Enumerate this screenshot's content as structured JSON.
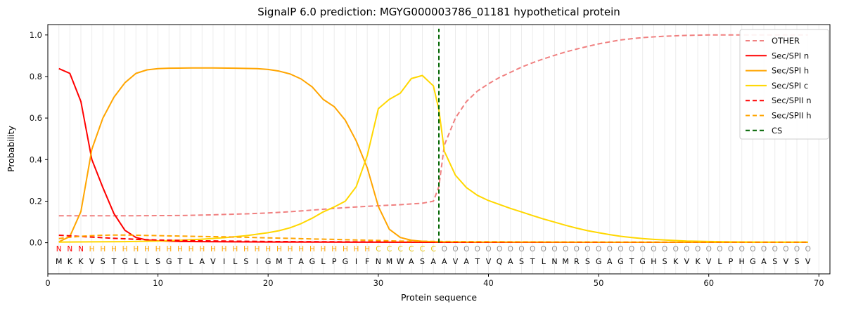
{
  "chart_data": {
    "type": "line",
    "title": "SignalP 6.0 prediction: MGYG000003786_01181 hypothetical protein",
    "xlabel": "Protein sequence",
    "ylabel": "Probability",
    "xlim": [
      0,
      71
    ],
    "ylim": [
      -0.15,
      1.05
    ],
    "xticks": [
      0,
      10,
      20,
      30,
      40,
      50,
      60,
      70
    ],
    "yticks": [
      0,
      0.2,
      0.4,
      0.6,
      0.8,
      1.0
    ],
    "grid": "light vertical gridline at every residue position",
    "legend_position": "upper right",
    "cs_position": 35.5,
    "cs_color": "#006400",
    "sequence": "MKKVSTGLLSGTLAVILSIGMTAGLPGIFNMWASAAVATVQASTLNMRSGAGTGHSKVKVLPHGASVSV",
    "region_labels": [
      {
        "label": "N",
        "start": 1,
        "end": 3,
        "color": "#ff0000"
      },
      {
        "label": "H",
        "start": 4,
        "end": 29,
        "color": "#ffa500"
      },
      {
        "label": "C",
        "start": 30,
        "end": 35,
        "color": "#e6c200"
      },
      {
        "label": "O",
        "start": 36,
        "end": 69,
        "color": "#8f8f8f"
      }
    ],
    "series": [
      {
        "name": "OTHER",
        "color": "#f08080",
        "dash": "7,4",
        "points": [
          [
            1,
            0.13
          ],
          [
            4,
            0.13
          ],
          [
            8,
            0.13
          ],
          [
            12,
            0.131
          ],
          [
            14,
            0.133
          ],
          [
            16,
            0.136
          ],
          [
            18,
            0.139
          ],
          [
            20,
            0.143
          ],
          [
            22,
            0.149
          ],
          [
            24,
            0.157
          ],
          [
            26,
            0.165
          ],
          [
            28,
            0.172
          ],
          [
            30,
            0.178
          ],
          [
            32,
            0.183
          ],
          [
            34,
            0.19
          ],
          [
            35,
            0.2
          ],
          [
            35.5,
            0.27
          ],
          [
            36,
            0.47
          ],
          [
            37,
            0.6
          ],
          [
            38,
            0.68
          ],
          [
            39,
            0.73
          ],
          [
            40,
            0.765
          ],
          [
            41,
            0.795
          ],
          [
            42,
            0.82
          ],
          [
            43,
            0.845
          ],
          [
            44,
            0.866
          ],
          [
            45,
            0.885
          ],
          [
            46,
            0.902
          ],
          [
            47,
            0.918
          ],
          [
            48,
            0.932
          ],
          [
            49,
            0.945
          ],
          [
            50,
            0.957
          ],
          [
            51,
            0.967
          ],
          [
            52,
            0.976
          ],
          [
            53,
            0.982
          ],
          [
            54,
            0.987
          ],
          [
            55,
            0.991
          ],
          [
            56,
            0.994
          ],
          [
            57,
            0.996
          ],
          [
            58,
            0.998
          ],
          [
            59,
            0.999
          ],
          [
            60,
            1.0
          ],
          [
            63,
            1.0
          ],
          [
            66,
            1.0
          ],
          [
            69,
            1.0
          ]
        ]
      },
      {
        "name": "Sec/SPI n",
        "color": "#ff0000",
        "dash": null,
        "points": [
          [
            1,
            0.838
          ],
          [
            2,
            0.815
          ],
          [
            3,
            0.68
          ],
          [
            4,
            0.4
          ],
          [
            5,
            0.265
          ],
          [
            6,
            0.14
          ],
          [
            7,
            0.06
          ],
          [
            8,
            0.025
          ],
          [
            9,
            0.013
          ],
          [
            10,
            0.009
          ],
          [
            12,
            0.006
          ],
          [
            14,
            0.005
          ],
          [
            17,
            0.004
          ],
          [
            20,
            0.0035
          ],
          [
            25,
            0.003
          ],
          [
            30,
            0.0025
          ],
          [
            35,
            0.002
          ],
          [
            40,
            0.002
          ],
          [
            50,
            0.002
          ],
          [
            60,
            0.002
          ],
          [
            69,
            0.002
          ]
        ]
      },
      {
        "name": "Sec/SPI h",
        "color": "#ffa500",
        "dash": null,
        "points": [
          [
            1,
            0.004
          ],
          [
            2,
            0.03
          ],
          [
            3,
            0.15
          ],
          [
            4,
            0.45
          ],
          [
            5,
            0.6
          ],
          [
            6,
            0.7
          ],
          [
            7,
            0.77
          ],
          [
            8,
            0.815
          ],
          [
            9,
            0.832
          ],
          [
            10,
            0.838
          ],
          [
            11,
            0.84
          ],
          [
            13,
            0.841
          ],
          [
            15,
            0.841
          ],
          [
            17,
            0.84
          ],
          [
            19,
            0.838
          ],
          [
            20,
            0.834
          ],
          [
            21,
            0.826
          ],
          [
            22,
            0.812
          ],
          [
            23,
            0.788
          ],
          [
            24,
            0.75
          ],
          [
            25,
            0.69
          ],
          [
            26,
            0.655
          ],
          [
            27,
            0.59
          ],
          [
            28,
            0.49
          ],
          [
            29,
            0.36
          ],
          [
            30,
            0.175
          ],
          [
            31,
            0.065
          ],
          [
            32,
            0.025
          ],
          [
            33,
            0.012
          ],
          [
            34,
            0.007
          ],
          [
            35,
            0.005
          ],
          [
            36,
            0.004
          ],
          [
            38,
            0.003
          ],
          [
            42,
            0.003
          ],
          [
            50,
            0.002
          ],
          [
            60,
            0.002
          ],
          [
            69,
            0.002
          ]
        ]
      },
      {
        "name": "Sec/SPI c",
        "color": "#ffd700",
        "dash": null,
        "points": [
          [
            1,
            0.003
          ],
          [
            4,
            0.004
          ],
          [
            7,
            0.005
          ],
          [
            10,
            0.008
          ],
          [
            12,
            0.012
          ],
          [
            14,
            0.017
          ],
          [
            16,
            0.024
          ],
          [
            18,
            0.034
          ],
          [
            20,
            0.048
          ],
          [
            21,
            0.058
          ],
          [
            22,
            0.072
          ],
          [
            23,
            0.092
          ],
          [
            24,
            0.118
          ],
          [
            25,
            0.148
          ],
          [
            26,
            0.172
          ],
          [
            27,
            0.2
          ],
          [
            28,
            0.27
          ],
          [
            29,
            0.42
          ],
          [
            30,
            0.645
          ],
          [
            31,
            0.69
          ],
          [
            32,
            0.72
          ],
          [
            33,
            0.79
          ],
          [
            34,
            0.805
          ],
          [
            35,
            0.755
          ],
          [
            35.5,
            0.64
          ],
          [
            36,
            0.44
          ],
          [
            37,
            0.325
          ],
          [
            38,
            0.265
          ],
          [
            39,
            0.228
          ],
          [
            40,
            0.203
          ],
          [
            41,
            0.184
          ],
          [
            42,
            0.165
          ],
          [
            43,
            0.148
          ],
          [
            44,
            0.131
          ],
          [
            45,
            0.114
          ],
          [
            46,
            0.099
          ],
          [
            47,
            0.084
          ],
          [
            48,
            0.07
          ],
          [
            49,
            0.058
          ],
          [
            50,
            0.048
          ],
          [
            51,
            0.039
          ],
          [
            52,
            0.031
          ],
          [
            53,
            0.025
          ],
          [
            54,
            0.02
          ],
          [
            55,
            0.016
          ],
          [
            56,
            0.013
          ],
          [
            58,
            0.008
          ],
          [
            60,
            0.006
          ],
          [
            62,
            0.004
          ],
          [
            65,
            0.003
          ],
          [
            69,
            0.003
          ]
        ]
      },
      {
        "name": "Sec/SPII n",
        "color": "#ff0000",
        "dash": "7,4",
        "points": [
          [
            1,
            0.036
          ],
          [
            2,
            0.033
          ],
          [
            3,
            0.03
          ],
          [
            4,
            0.027
          ],
          [
            5,
            0.024
          ],
          [
            6,
            0.021
          ],
          [
            7,
            0.019
          ],
          [
            8,
            0.016
          ],
          [
            10,
            0.013
          ],
          [
            12,
            0.011
          ],
          [
            14,
            0.009
          ],
          [
            16,
            0.008
          ],
          [
            18,
            0.007
          ],
          [
            20,
            0.006
          ],
          [
            23,
            0.005
          ],
          [
            26,
            0.0045
          ],
          [
            30,
            0.004
          ],
          [
            35,
            0.003
          ],
          [
            40,
            0.003
          ],
          [
            50,
            0.002
          ],
          [
            60,
            0.002
          ],
          [
            69,
            0.002
          ]
        ]
      },
      {
        "name": "Sec/SPII h",
        "color": "#ffa500",
        "dash": "7,4",
        "points": [
          [
            1,
            0.02
          ],
          [
            2,
            0.026
          ],
          [
            3,
            0.031
          ],
          [
            4,
            0.034
          ],
          [
            5,
            0.036
          ],
          [
            6,
            0.037
          ],
          [
            7,
            0.037
          ],
          [
            8,
            0.036
          ],
          [
            10,
            0.034
          ],
          [
            12,
            0.032
          ],
          [
            14,
            0.03
          ],
          [
            16,
            0.028
          ],
          [
            18,
            0.026
          ],
          [
            20,
            0.023
          ],
          [
            22,
            0.021
          ],
          [
            24,
            0.018
          ],
          [
            26,
            0.016
          ],
          [
            28,
            0.013
          ],
          [
            30,
            0.011
          ],
          [
            32,
            0.0075
          ],
          [
            34,
            0.007
          ],
          [
            36,
            0.006
          ],
          [
            38,
            0.0055
          ],
          [
            40,
            0.005
          ],
          [
            44,
            0.004
          ],
          [
            48,
            0.0037
          ],
          [
            52,
            0.0033
          ],
          [
            56,
            0.003
          ],
          [
            60,
            0.003
          ],
          [
            65,
            0.003
          ],
          [
            69,
            0.003
          ]
        ]
      }
    ],
    "legend": [
      {
        "label": "OTHER",
        "color": "#f08080",
        "dash": true
      },
      {
        "label": "Sec/SPI n",
        "color": "#ff0000",
        "dash": false
      },
      {
        "label": "Sec/SPI h",
        "color": "#ffa500",
        "dash": false
      },
      {
        "label": "Sec/SPI c",
        "color": "#ffd700",
        "dash": false
      },
      {
        "label": "Sec/SPII n",
        "color": "#ff0000",
        "dash": true
      },
      {
        "label": "Sec/SPII h",
        "color": "#ffa500",
        "dash": true
      },
      {
        "label": "CS",
        "color": "#006400",
        "dash": true
      }
    ]
  }
}
